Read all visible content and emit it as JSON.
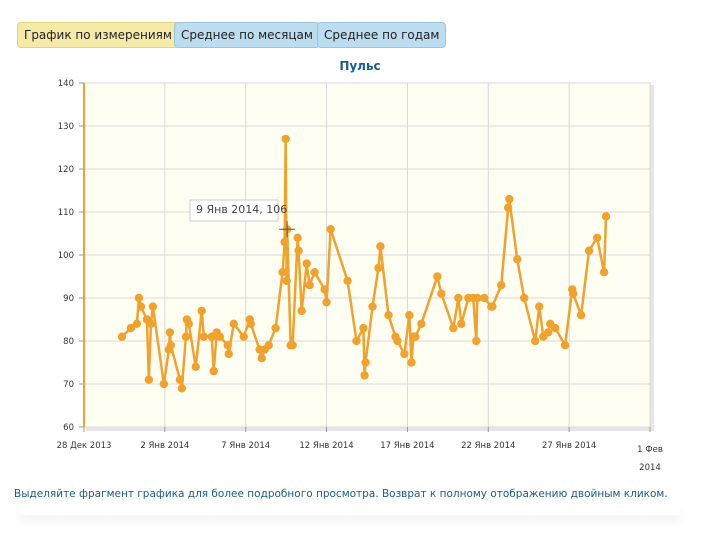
{
  "tabs": [
    "График по измерениям",
    "Среднее по месяцам",
    "Среднее по годам"
  ],
  "chart_data": {
    "type": "line",
    "title": "Пульс",
    "color": "#f0a22c",
    "grid": true,
    "tooltip": "9 Янв 2014, 106",
    "xlim": [
      0,
      35
    ],
    "xticks": [
      {
        "value": 0,
        "label": "28 Дек 2013"
      },
      {
        "value": 5,
        "label": "2 Янв 2014"
      },
      {
        "value": 10,
        "label": "7 Янв 2014"
      },
      {
        "value": 15,
        "label": "12 Янв 2014"
      },
      {
        "value": 20,
        "label": "17 Янв 2014"
      },
      {
        "value": 25,
        "label": "22 Янв 2014"
      },
      {
        "value": 30,
        "label": "27 Янв 2014"
      },
      {
        "value": 35,
        "label": "1 Фев 2014"
      }
    ],
    "ylim": [
      60,
      140
    ],
    "yticks": [
      60,
      70,
      80,
      90,
      100,
      110,
      120,
      130,
      140
    ],
    "x": [
      2.35,
      2.9,
      3.27,
      3.4,
      3.52,
      3.89,
      4.01,
      4.14,
      4.26,
      4.94,
      5.25,
      5.31,
      5.37,
      5.93,
      6.05,
      6.3,
      6.36,
      6.48,
      6.91,
      7.28,
      7.41,
      7.9,
      8.02,
      8.21,
      8.4,
      8.89,
      8.95,
      9.26,
      9.88,
      10.25,
      10.31,
      10.86,
      10.99,
      11.17,
      11.42,
      11.85,
      12.28,
      12.41,
      12.47,
      12.53,
      12.56,
      12.78,
      12.9,
      13.21,
      13.27,
      13.46,
      13.77,
      13.95,
      14.26,
      14.88,
      15.0,
      15.25,
      16.3,
      16.85,
      17.28,
      17.35,
      17.41,
      17.84,
      18.21,
      18.33,
      18.83,
      19.26,
      19.38,
      19.81,
      20.12,
      20.25,
      20.37,
      20.49,
      20.86,
      21.85,
      22.1,
      22.84,
      23.15,
      23.33,
      23.77,
      24.07,
      24.26,
      24.32,
      24.75,
      25.19,
      25.25,
      25.8,
      26.23,
      26.3,
      26.79,
      27.22,
      27.9,
      28.15,
      28.4,
      28.7,
      28.83,
      29.14,
      29.75,
      30.19,
      30.25,
      30.74,
      31.23,
      31.73,
      32.16,
      32.28
    ],
    "values": [
      81,
      83,
      84,
      90,
      88,
      85,
      71,
      84,
      88,
      70,
      78,
      82,
      79,
      71,
      69,
      81,
      85,
      84,
      74,
      87,
      81,
      81,
      73,
      82,
      81,
      79,
      77,
      84,
      81,
      85,
      84,
      78,
      76,
      78,
      79,
      83,
      96,
      103,
      127,
      94,
      106,
      79,
      79,
      104,
      101,
      87,
      98,
      93,
      96,
      92,
      89,
      106,
      94,
      80,
      83,
      72,
      75,
      88,
      97,
      102,
      86,
      81,
      80,
      77,
      86,
      75,
      81,
      81,
      84,
      95,
      91,
      83,
      90,
      84,
      90,
      90,
      80,
      90,
      90,
      88,
      88,
      93,
      111,
      113,
      99,
      90,
      80,
      88,
      81,
      82,
      84,
      83,
      79,
      92,
      91,
      86,
      101,
      104,
      96,
      109
    ]
  },
  "footer": "Выделяйте фрагмент графика для более подробного просмотра. Возврат к полному отображению двойным кликом."
}
